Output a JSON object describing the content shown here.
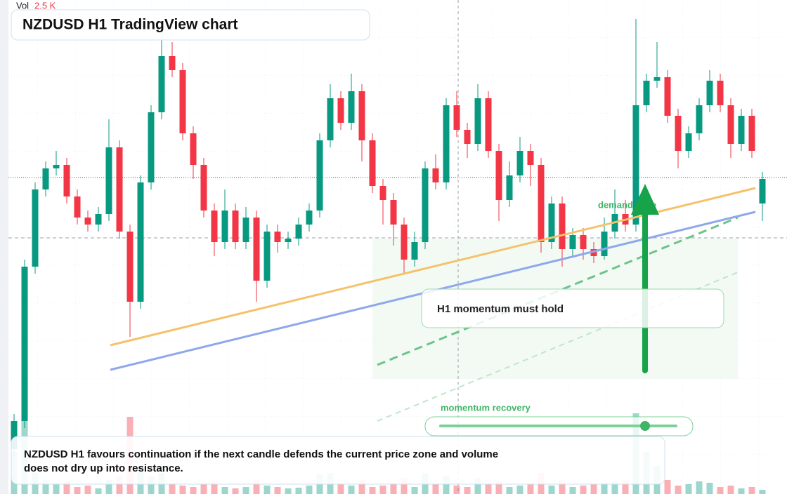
{
  "chart_data": {
    "type": "candlestick",
    "title": "NZDUSD H1 TradingView chart",
    "vol_label": "Vol",
    "vol_value": "2.5 K",
    "annotations": {
      "zone": "demand zone",
      "note": "H1 momentum must hold",
      "slider": "momentum recovery",
      "summary": [
        "NZDUSD H1 favours continuation if the next candle defends the current price zone and volume",
        "does not dry up into resistance."
      ]
    },
    "ylim": [
      0,
      704
    ],
    "vlim": [
      0,
      150
    ],
    "up_color": "#089981",
    "down_color": "#f23645",
    "open": [
      64,
      104,
      324,
      434,
      464,
      469,
      424,
      394,
      384,
      399,
      494,
      374,
      274,
      444,
      544,
      624,
      604,
      514,
      469,
      404,
      359,
      404,
      359,
      394,
      304,
      374,
      359,
      364,
      384,
      404,
      504,
      564,
      529,
      574,
      504,
      439,
      419,
      384,
      334,
      359,
      464,
      444,
      554,
      519,
      499,
      564,
      489,
      419,
      454,
      489,
      469,
      359,
      414,
      349,
      369,
      349,
      339,
      374,
      399,
      384,
      554,
      589,
      594,
      539,
      489,
      514,
      554,
      589,
      554,
      499,
      539,
      414
    ],
    "high": [
      114,
      334,
      444,
      474,
      489,
      479,
      434,
      404,
      409,
      534,
      504,
      384,
      454,
      554,
      664,
      644,
      614,
      524,
      479,
      414,
      434,
      414,
      409,
      404,
      384,
      384,
      374,
      394,
      414,
      514,
      584,
      574,
      599,
      584,
      514,
      449,
      429,
      394,
      374,
      474,
      484,
      564,
      574,
      529,
      584,
      574,
      499,
      474,
      509,
      499,
      479,
      424,
      424,
      379,
      379,
      359,
      394,
      434,
      419,
      677,
      599,
      644,
      604,
      549,
      524,
      564,
      604,
      599,
      564,
      549,
      549,
      459
    ],
    "low": [
      54,
      94,
      314,
      424,
      454,
      414,
      384,
      374,
      374,
      389,
      364,
      224,
      264,
      434,
      534,
      594,
      504,
      449,
      394,
      339,
      349,
      349,
      349,
      274,
      294,
      344,
      349,
      354,
      374,
      394,
      494,
      519,
      519,
      474,
      429,
      384,
      354,
      314,
      324,
      349,
      434,
      434,
      509,
      479,
      489,
      479,
      389,
      409,
      444,
      439,
      344,
      349,
      324,
      339,
      334,
      329,
      334,
      364,
      374,
      374,
      544,
      579,
      529,
      464,
      479,
      504,
      544,
      544,
      479,
      489,
      479,
      389
    ],
    "close": [
      104,
      324,
      434,
      464,
      469,
      424,
      394,
      384,
      399,
      494,
      374,
      274,
      444,
      544,
      624,
      604,
      514,
      469,
      404,
      359,
      404,
      359,
      394,
      304,
      374,
      359,
      364,
      384,
      404,
      504,
      564,
      529,
      574,
      504,
      439,
      419,
      384,
      334,
      359,
      464,
      444,
      554,
      519,
      499,
      564,
      489,
      419,
      454,
      489,
      469,
      359,
      414,
      349,
      369,
      349,
      339,
      374,
      399,
      384,
      554,
      589,
      594,
      539,
      489,
      514,
      554,
      589,
      554,
      499,
      539,
      489,
      449
    ],
    "volume": [
      60,
      140,
      30,
      20,
      15,
      18,
      10,
      12,
      8,
      20,
      25,
      110,
      40,
      25,
      30,
      15,
      12,
      10,
      14,
      18,
      10,
      8,
      10,
      20,
      12,
      10,
      8,
      9,
      12,
      28,
      30,
      15,
      12,
      20,
      10,
      12,
      16,
      22,
      10,
      30,
      14,
      26,
      12,
      10,
      22,
      14,
      18,
      10,
      12,
      14,
      30,
      12,
      20,
      10,
      12,
      14,
      16,
      18,
      20,
      115,
      60,
      40,
      20,
      12,
      14,
      18,
      16,
      10,
      12,
      8,
      10,
      6
    ]
  }
}
